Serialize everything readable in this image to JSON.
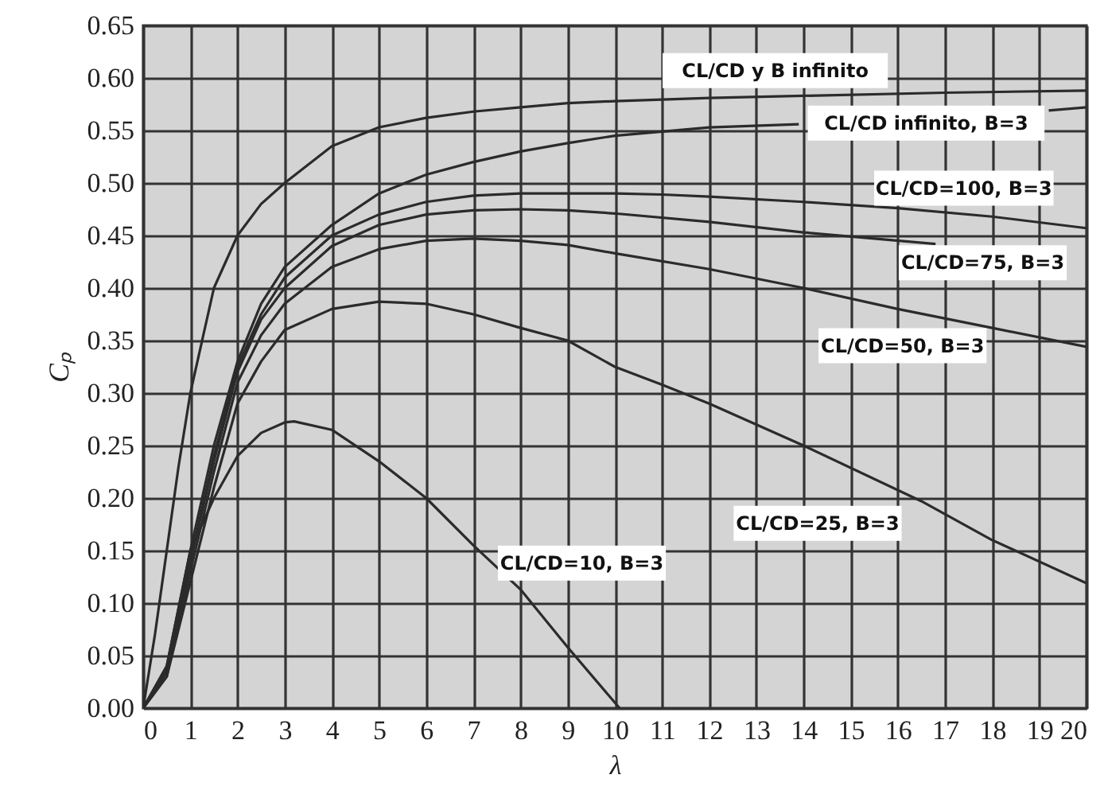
{
  "chart_data": {
    "type": "line",
    "xlabel": "λ",
    "ylabel": "Cₚ",
    "xlim": [
      0,
      20
    ],
    "ylim": [
      0,
      0.65
    ],
    "xticks": [
      0,
      1,
      2,
      3,
      4,
      5,
      6,
      7,
      8,
      9,
      10,
      11,
      12,
      13,
      14,
      15,
      16,
      17,
      18,
      19,
      20
    ],
    "yticks": [
      {
        "value": 0,
        "label": "0.00"
      },
      {
        "value": 0.05,
        "label": "0.05"
      },
      {
        "value": 0.1,
        "label": "0.10"
      },
      {
        "value": 0.15,
        "label": "0.15"
      },
      {
        "value": 0.2,
        "label": "0.20"
      },
      {
        "value": 0.25,
        "label": "0.25"
      },
      {
        "value": 0.3,
        "label": "0.30"
      },
      {
        "value": 0.35,
        "label": "0.35"
      },
      {
        "value": 0.4,
        "label": "0.40"
      },
      {
        "value": 0.45,
        "label": "0.45"
      },
      {
        "value": 0.5,
        "label": "0.50"
      },
      {
        "value": 0.55,
        "label": "0.55"
      },
      {
        "value": 0.6,
        "label": "0.60"
      },
      {
        "value": 0.65,
        "label": "0.65"
      }
    ],
    "grid": true,
    "marker": "none",
    "line_style": "solid",
    "series": [
      {
        "name": "CL/CD y B infinito",
        "color": "#2b2b2b",
        "x": [
          0,
          0.25,
          0.5,
          0.75,
          1,
          1.5,
          2,
          2.5,
          3,
          4,
          5,
          6,
          7,
          8,
          9,
          10,
          12,
          14,
          17,
          20
        ],
        "values": [
          0,
          0.07,
          0.15,
          0.23,
          0.3,
          0.4,
          0.45,
          0.48,
          0.5,
          0.535,
          0.553,
          0.562,
          0.568,
          0.572,
          0.576,
          0.578,
          0.581,
          0.583,
          0.586,
          0.588
        ]
      },
      {
        "name": "CL/CD infinito, B=3",
        "color": "#2b2b2b",
        "x": [
          0,
          0.5,
          1,
          1.5,
          2,
          2.5,
          3,
          4,
          5,
          6,
          7,
          8,
          9,
          10,
          12,
          13.9,
          16,
          18,
          19.2,
          20
        ],
        "values": [
          0,
          0.04,
          0.15,
          0.25,
          0.33,
          0.385,
          0.42,
          0.46,
          0.49,
          0.508,
          0.52,
          0.53,
          0.538,
          0.545,
          0.553,
          0.556,
          null,
          null,
          0.569,
          0.572
        ]
      },
      {
        "name": "CL/CD=100, B=3",
        "color": "#2b2b2b",
        "x": [
          0,
          0.5,
          1,
          1.5,
          2,
          2.5,
          3,
          4,
          5,
          6,
          7,
          8,
          9,
          10,
          11,
          12,
          14,
          16,
          18,
          20
        ],
        "values": [
          0,
          0.035,
          0.14,
          0.24,
          0.325,
          0.375,
          0.41,
          0.45,
          0.47,
          0.482,
          0.488,
          0.49,
          0.49,
          0.49,
          0.489,
          0.487,
          0.482,
          0.476,
          0.468,
          0.457
        ]
      },
      {
        "name": "CL/CD=75, B=3",
        "color": "#2b2b2b",
        "x": [
          0,
          0.5,
          1,
          1.5,
          2,
          2.5,
          3,
          4,
          5,
          6,
          7,
          8,
          9,
          10,
          12,
          14,
          16.8
        ],
        "values": [
          0,
          0.035,
          0.14,
          0.235,
          0.32,
          0.37,
          0.4,
          0.44,
          0.46,
          0.47,
          0.474,
          0.475,
          0.474,
          0.471,
          0.463,
          0.453,
          0.442
        ]
      },
      {
        "name": "CL/CD=50, B=3",
        "color": "#2b2b2b",
        "x": [
          0,
          0.5,
          1,
          1.5,
          2,
          2.5,
          3,
          4,
          5,
          6,
          7,
          8,
          9,
          10,
          12,
          14,
          16,
          18,
          20
        ],
        "values": [
          0,
          0.03,
          0.13,
          0.225,
          0.31,
          0.355,
          0.385,
          0.42,
          0.437,
          0.445,
          0.447,
          0.445,
          0.441,
          0.433,
          0.418,
          0.4,
          0.38,
          0.362,
          0.344
        ]
      },
      {
        "name": "CL/CD=25, B=3",
        "color": "#2b2b2b",
        "x": [
          0,
          0.5,
          1,
          1.5,
          2,
          2.5,
          3,
          4,
          5,
          6,
          7,
          8,
          9,
          10,
          11,
          12,
          14,
          16.5,
          18,
          20
        ],
        "values": [
          0,
          0.03,
          0.12,
          0.21,
          0.29,
          0.33,
          0.36,
          0.38,
          0.387,
          0.385,
          0.375,
          0.362,
          0.35,
          0.325,
          0.308,
          0.29,
          0.25,
          0.197,
          0.16,
          0.119
        ]
      },
      {
        "name": "CL/CD=10, B=3",
        "color": "#2b2b2b",
        "x": [
          0,
          0.5,
          1,
          1.5,
          2,
          2.5,
          3,
          3.2,
          4,
          5,
          6,
          7,
          8,
          9,
          10.1
        ],
        "values": [
          0,
          0.04,
          0.15,
          0.2,
          0.24,
          0.262,
          0.272,
          0.273,
          0.265,
          0.235,
          0.2,
          0.155,
          0.113,
          0.058,
          0
        ]
      }
    ]
  }
}
